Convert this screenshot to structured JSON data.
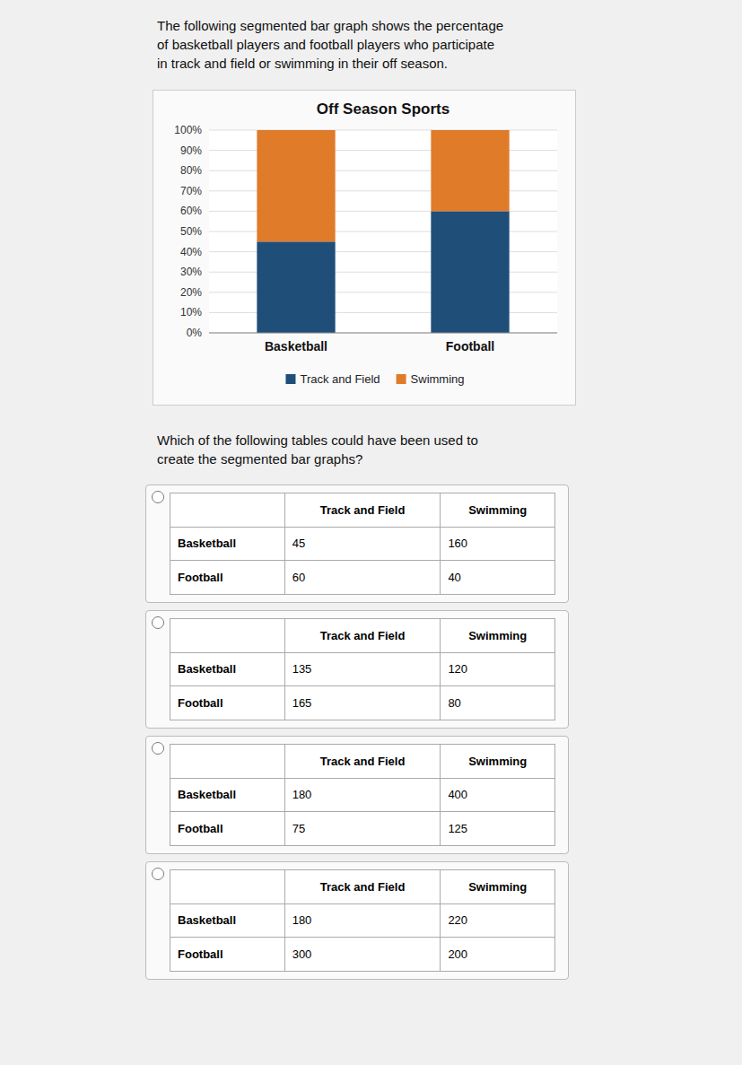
{
  "intro_text_lines": [
    "The following segmented bar graph shows the percentage",
    "of basketball players and football players who participate",
    "in track and field or swimming in their off season."
  ],
  "chart_data": {
    "type": "bar",
    "stacked": true,
    "title": "Off Season Sports",
    "categories": [
      "Basketball",
      "Football"
    ],
    "series": [
      {
        "name": "Track and Field",
        "color": "#1f4e79",
        "values": [
          45,
          60
        ]
      },
      {
        "name": "Swimming",
        "color": "#e07b2a",
        "values": [
          55,
          40
        ]
      }
    ],
    "ylim": [
      0,
      100
    ],
    "yticks": [
      {
        "value": 0,
        "label": "0%"
      },
      {
        "value": 10,
        "label": "10%"
      },
      {
        "value": 20,
        "label": "20%"
      },
      {
        "value": 30,
        "label": "30%"
      },
      {
        "value": 40,
        "label": "40%"
      },
      {
        "value": 50,
        "label": "50%"
      },
      {
        "value": 60,
        "label": "60%"
      },
      {
        "value": 70,
        "label": "70%"
      },
      {
        "value": 80,
        "label": "80%"
      },
      {
        "value": 90,
        "label": "90%"
      },
      {
        "value": 100,
        "label": "100%"
      }
    ],
    "grid": true,
    "legend": "bottom"
  },
  "question_text_lines": [
    "Which of the following tables could have been used to",
    "create the segmented bar graphs?"
  ],
  "table_columns": [
    "Track and Field",
    "Swimming"
  ],
  "tables": [
    {
      "rows": [
        {
          "label": "Basketball",
          "track": "45",
          "swim": "160"
        },
        {
          "label": "Football",
          "track": "60",
          "swim": "40"
        }
      ]
    },
    {
      "rows": [
        {
          "label": "Basketball",
          "track": "135",
          "swim": "120"
        },
        {
          "label": "Football",
          "track": "165",
          "swim": "80"
        }
      ]
    },
    {
      "rows": [
        {
          "label": "Basketball",
          "track": "180",
          "swim": "400"
        },
        {
          "label": "Football",
          "track": "75",
          "swim": "125"
        }
      ]
    },
    {
      "rows": [
        {
          "label": "Basketball",
          "track": "180",
          "swim": "220"
        },
        {
          "label": "Football",
          "track": "300",
          "swim": "200"
        }
      ]
    }
  ]
}
